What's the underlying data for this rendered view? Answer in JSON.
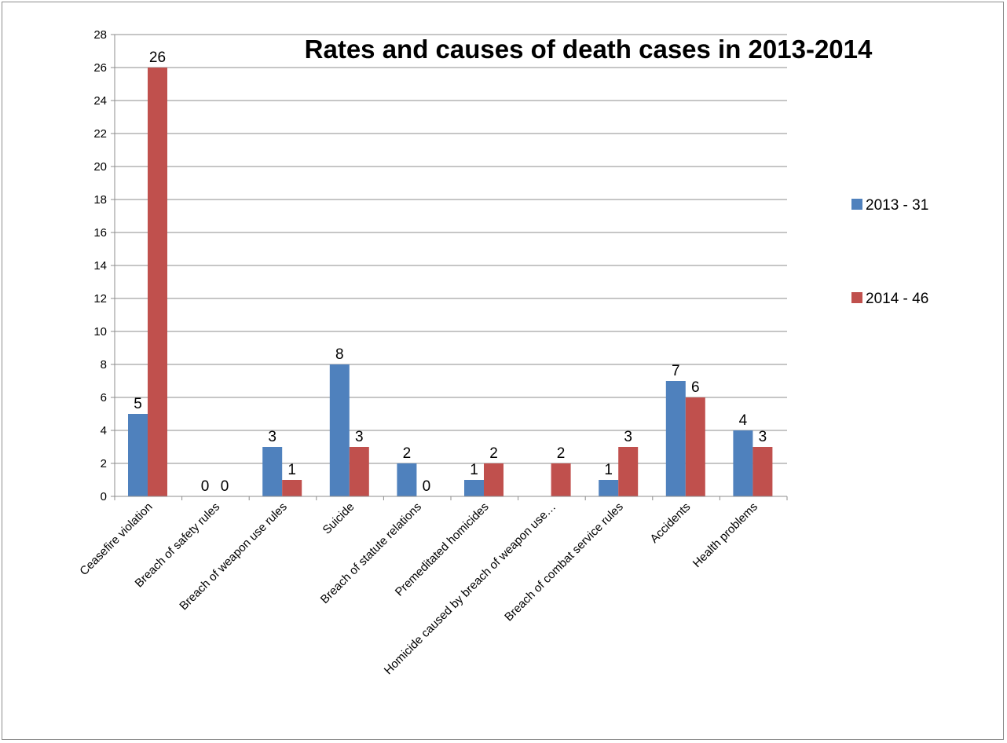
{
  "chart_data": {
    "type": "bar",
    "title": "Rates and causes of death cases in 2013-2014",
    "categories": [
      "Ceasefire violation",
      "Breach of safety rules",
      "Breach of weapon use rules",
      "Suicide",
      "Breach of statute relations",
      "Premeditated homicides",
      "Homicide caused by breach of weapon use…",
      "Breach of combat service rules",
      "Accidents",
      "Health problems"
    ],
    "series": [
      {
        "name": "2013 - 31",
        "color": "#4f81bd",
        "values": [
          5,
          0,
          3,
          8,
          2,
          1,
          null,
          1,
          7,
          4
        ],
        "labels": [
          "5",
          "0",
          "3",
          "8",
          "2",
          "1",
          "",
          "1",
          "7",
          "4"
        ]
      },
      {
        "name": "2014 - 46",
        "color": "#c0504d",
        "values": [
          26,
          0,
          1,
          3,
          0,
          2,
          2,
          3,
          6,
          3
        ],
        "labels": [
          "26",
          "0",
          "1",
          "3",
          "0",
          "2",
          "2",
          "3",
          "6",
          "3"
        ]
      }
    ],
    "xlabel": "",
    "ylabel": "",
    "ylim": [
      0,
      28
    ],
    "ytick_step": 2,
    "yticks": [
      "0",
      "2",
      "4",
      "6",
      "8",
      "10",
      "12",
      "14",
      "16",
      "18",
      "20",
      "22",
      "24",
      "26",
      "28"
    ],
    "grid": true,
    "legend_position": "right"
  }
}
